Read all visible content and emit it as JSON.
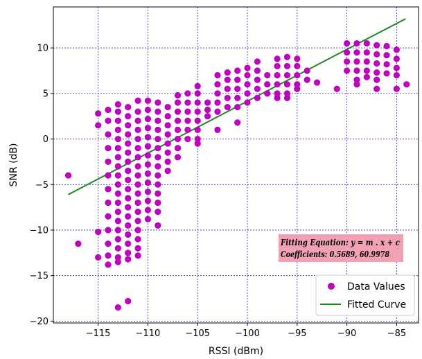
{
  "chart_data": {
    "type": "scatter",
    "title": "",
    "xlabel": "RSSI (dBm)",
    "ylabel": "SNR (dB)",
    "xlim": [
      -119.5,
      -82.8
    ],
    "ylim": [
      -20.2,
      14.5
    ],
    "xticks": [
      -115,
      -110,
      -105,
      -100,
      -95,
      -90,
      -85
    ],
    "yticks": [
      -20,
      -15,
      -10,
      -5,
      0,
      5,
      10
    ],
    "grid": true,
    "legend_position": "bottom-right",
    "colors": {
      "points": "#c000c0",
      "fit": "#1a8a1a",
      "grid": "#2222ee",
      "annotation_bg": "#f2a0b4"
    },
    "series": [
      {
        "name": "Data Values",
        "kind": "scatter",
        "columns": [
          {
            "x": -118,
            "y": [
              -4
            ]
          },
          {
            "x": -117,
            "y": [
              -11.5
            ]
          },
          {
            "x": -115,
            "y": [
              2.8,
              1.5,
              -10.2,
              -13
            ]
          },
          {
            "x": -114,
            "y": [
              3.2,
              2,
              0.5,
              -1,
              -2.5,
              -4,
              -5.5,
              -7,
              -8.5,
              -10,
              -11.5,
              -12.8,
              -13.8
            ]
          },
          {
            "x": -113,
            "y": [
              3.8,
              3,
              2,
              1,
              0,
              -1,
              -2,
              -3,
              -4,
              -5,
              -6,
              -7,
              -8,
              -9,
              -10,
              -11,
              -12,
              -13,
              -13.5,
              -18.5
            ]
          },
          {
            "x": -112,
            "y": [
              3.5,
              2.5,
              1.5,
              0.5,
              -0.5,
              -1.5,
              -2.5,
              -3.5,
              -4.5,
              -5.5,
              -6.5,
              -7.5,
              -8.5,
              -9.5,
              -10.5,
              -11.5,
              -12.5,
              -13.2,
              -17.8
            ]
          },
          {
            "x": -111,
            "y": [
              4.2,
              3,
              2,
              1,
              0,
              -1,
              -2,
              -3,
              -4,
              -5,
              -6,
              -7,
              -8,
              -9,
              -10,
              -11,
              -12,
              -12.8
            ]
          },
          {
            "x": -110,
            "y": [
              4.2,
              3.2,
              2.2,
              1.2,
              0.2,
              -0.8,
              -1.8,
              -2.8,
              -3.8,
              -4.8,
              -5.8,
              -6.8,
              -7.8,
              -8.8
            ]
          },
          {
            "x": -109,
            "y": [
              4,
              3,
              2,
              1,
              0,
              -1,
              -2,
              -3,
              -4,
              -5,
              -6,
              -7,
              -8,
              -9.5
            ]
          },
          {
            "x": -108,
            "y": [
              3.5,
              2.5,
              1.5,
              0.5,
              -0.5,
              -1.5,
              -2.5,
              -3.5
            ]
          },
          {
            "x": -107,
            "y": [
              4.8,
              4,
              3,
              2,
              1,
              0,
              -1,
              -2
            ]
          },
          {
            "x": -106,
            "y": [
              5,
              4,
              3,
              2,
              1,
              0
            ]
          },
          {
            "x": -105,
            "y": [
              5.8,
              5,
              4,
              3,
              2,
              1,
              0,
              -0.5
            ]
          },
          {
            "x": -104,
            "y": [
              4,
              3.2,
              2.5
            ]
          },
          {
            "x": -103,
            "y": [
              7,
              6,
              5,
              4,
              3,
              1
            ]
          },
          {
            "x": -102,
            "y": [
              7.3,
              6.5,
              5.5,
              4.5,
              3.5
            ]
          },
          {
            "x": -101,
            "y": [
              7.5,
              6.5,
              5.5,
              4.5,
              3.5,
              1.8
            ]
          },
          {
            "x": -100,
            "y": [
              7.8,
              7,
              6,
              5,
              4
            ]
          },
          {
            "x": -99,
            "y": [
              8.5,
              7.5,
              6.5,
              5.5,
              4.5
            ]
          },
          {
            "x": -98,
            "y": [
              7,
              6,
              5
            ]
          },
          {
            "x": -97,
            "y": [
              8.8,
              8,
              7,
              6,
              5,
              4.5
            ]
          },
          {
            "x": -96,
            "y": [
              9,
              8,
              7,
              6,
              5,
              4.5
            ]
          },
          {
            "x": -95,
            "y": [
              8.8,
              8,
              7,
              6,
              5.5
            ]
          },
          {
            "x": -94,
            "y": [
              7.5,
              6.5
            ]
          },
          {
            "x": -93,
            "y": [
              6.2
            ]
          },
          {
            "x": -91,
            "y": [
              5.5
            ]
          },
          {
            "x": -90,
            "y": [
              10.5,
              9.5,
              8.5,
              7.5
            ]
          },
          {
            "x": -89,
            "y": [
              10.5,
              9.5,
              8.5,
              7.5,
              6.5,
              6
            ]
          },
          {
            "x": -88,
            "y": [
              10.5,
              9.5,
              8.5,
              7.5,
              6.8
            ]
          },
          {
            "x": -87,
            "y": [
              10.3,
              9.3,
              8.3,
              7.3,
              6.5,
              5.5
            ]
          },
          {
            "x": -86,
            "y": [
              10.2,
              9.2,
              8.2,
              7.2
            ]
          },
          {
            "x": -85,
            "y": [
              9.8,
              8.8,
              7.8,
              7,
              5.5
            ]
          },
          {
            "x": -84,
            "y": [
              6
            ]
          }
        ]
      },
      {
        "name": "Fitted Curve",
        "kind": "line",
        "x": [
          -118,
          -84.1
        ],
        "y": [
          -6.1,
          13.2
        ]
      }
    ],
    "annotations": {
      "line1": "Fitting Equation: y = m . x  + c",
      "line2": "Coefficients:  0.5689, 60.9978"
    }
  }
}
